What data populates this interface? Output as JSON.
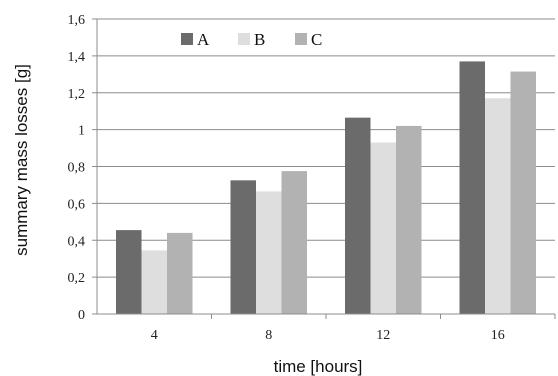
{
  "chart_data": {
    "type": "bar",
    "title": "",
    "xlabel": "time [hours]",
    "ylabel": "summary mass losses [g]",
    "categories": [
      "4",
      "8",
      "12",
      "16"
    ],
    "series": [
      {
        "name": "A",
        "values": [
          0.455,
          0.725,
          1.065,
          1.37
        ],
        "color": "#6b6b6b"
      },
      {
        "name": "B",
        "values": [
          0.345,
          0.665,
          0.93,
          1.17
        ],
        "color": "#dedede"
      },
      {
        "name": "C",
        "values": [
          0.44,
          0.775,
          1.02,
          1.315
        ],
        "color": "#b2b2b2"
      }
    ],
    "ylim": [
      0,
      1.6
    ],
    "yticks": [
      "0",
      "0,2",
      "0,4",
      "0,6",
      "0,8",
      "1",
      "1,2",
      "1,4",
      "1,6"
    ],
    "grid": true,
    "legend": "top-left"
  },
  "colors": {
    "grid": "#8c8c8c",
    "axis": "#8c8c8c"
  }
}
